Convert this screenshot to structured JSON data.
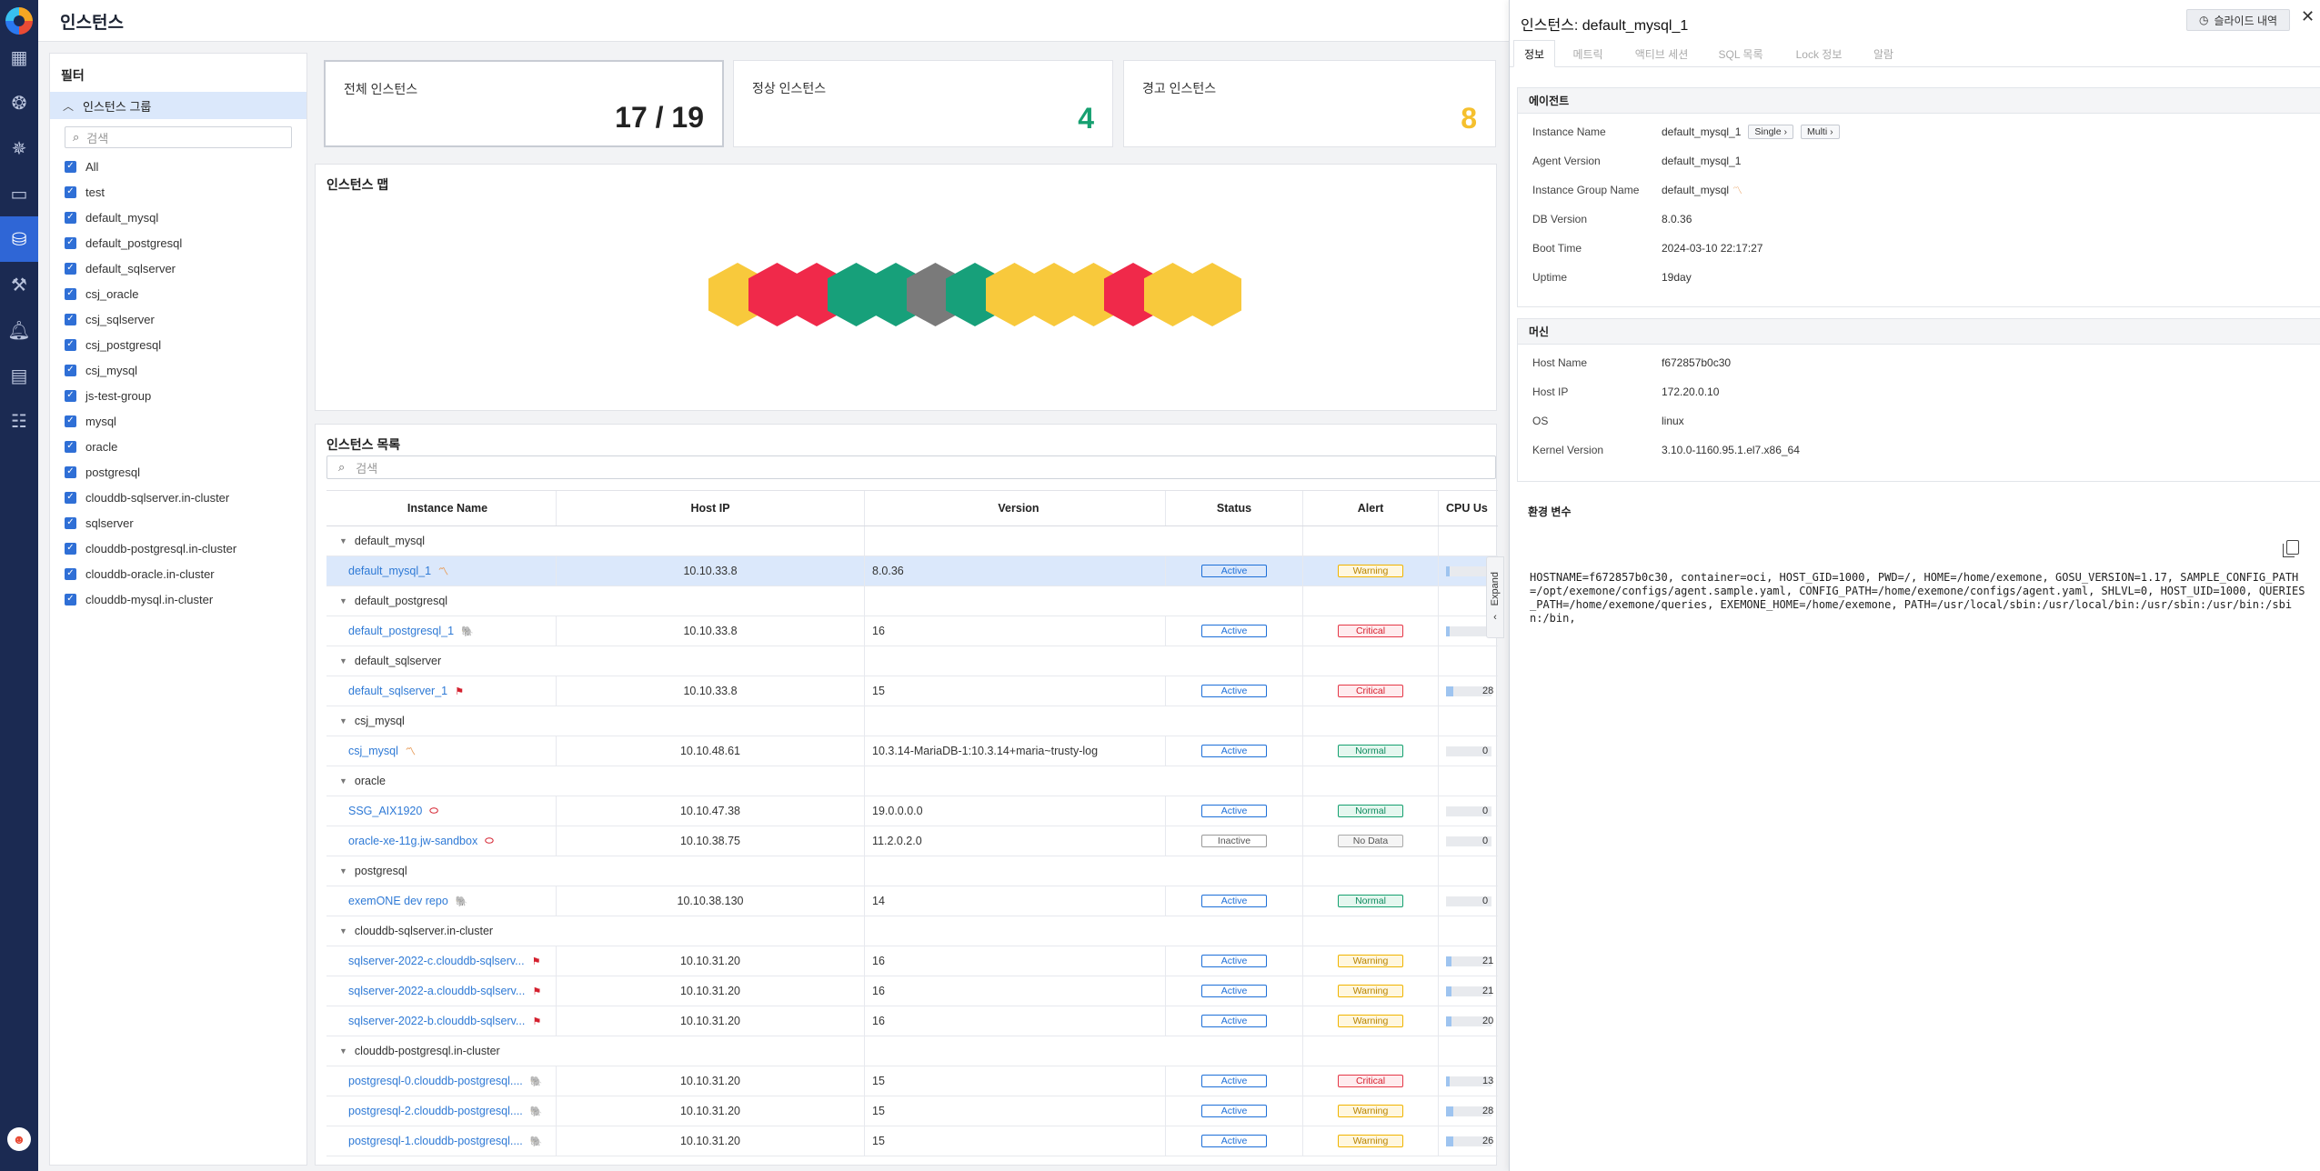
{
  "page_title": "인스턴스",
  "nav_icons": [
    "dashboard-icon",
    "cluster-icon",
    "kubernetes-icon",
    "monitor-icon",
    "database-icon",
    "tools-icon",
    "bell-icon",
    "report-icon",
    "clipboard-icon"
  ],
  "filter": {
    "title": "필터",
    "group_title": "인스턴스 그룹",
    "search_placeholder": "검색",
    "items": [
      "All",
      "test",
      "default_mysql",
      "default_postgresql",
      "default_sqlserver",
      "csj_oracle",
      "csj_sqlserver",
      "csj_postgresql",
      "csj_mysql",
      "js-test-group",
      "mysql",
      "oracle",
      "postgresql",
      "clouddb-sqlserver.in-cluster",
      "sqlserver",
      "clouddb-postgresql.in-cluster",
      "clouddb-oracle.in-cluster",
      "clouddb-mysql.in-cluster"
    ]
  },
  "cards": [
    {
      "label": "전체 인스턴스",
      "value": "17 / 19",
      "color": "#222222"
    },
    {
      "label": "정상 인스턴스",
      "value": "4",
      "color": "#16a070"
    },
    {
      "label": "경고 인스턴스",
      "value": "8",
      "color": "#f5c02e"
    }
  ],
  "map": {
    "title": "인스턴스 맵",
    "hex_colors": [
      "#f8c93c",
      "#f0294a",
      "#f0294a",
      "#17a07a",
      "#17a07a",
      "#7a7a7a",
      "#17a07a",
      "#f8c93c",
      "#f8c93c",
      "#f8c93c",
      "#f0294a",
      "#f8c93c",
      "#f8c93c"
    ]
  },
  "list": {
    "title": "인스턴스 목록",
    "search_placeholder": "검색",
    "columns": [
      "Instance Name",
      "Host IP",
      "Version",
      "Status",
      "Alert",
      "CPU Us"
    ],
    "rows": [
      {
        "type": "group",
        "name": "default_mysql"
      },
      {
        "type": "row",
        "name": "default_mysql_1",
        "icon": "〽",
        "icon_color": "#e8a060",
        "ip": "10.10.33.8",
        "version": "8.0.36",
        "status": "Active",
        "alert": "Warning",
        "cpu": "",
        "cpu_pct": 12,
        "selected": true
      },
      {
        "type": "group",
        "name": "default_postgresql"
      },
      {
        "type": "row",
        "name": "default_postgresql_1",
        "icon": "🐘",
        "icon_color": "#336791",
        "ip": "10.10.33.8",
        "version": "16",
        "status": "Active",
        "alert": "Critical",
        "cpu": "",
        "cpu_pct": 12
      },
      {
        "type": "group",
        "name": "default_sqlserver"
      },
      {
        "type": "row",
        "name": "default_sqlserver_1",
        "icon": "⚑",
        "icon_color": "#d4202e",
        "ip": "10.10.33.8",
        "version": "15",
        "status": "Active",
        "alert": "Critical",
        "cpu": "28",
        "cpu_pct": 28
      },
      {
        "type": "group",
        "name": "csj_mysql"
      },
      {
        "type": "row",
        "name": "csj_mysql",
        "icon": "〽",
        "icon_color": "#e8a060",
        "ip": "10.10.48.61",
        "version": "10.3.14-MariaDB-1:10.3.14+maria~trusty-log",
        "status": "Active",
        "alert": "Normal",
        "cpu": "0",
        "cpu_pct": 0
      },
      {
        "type": "group",
        "name": "oracle"
      },
      {
        "type": "row",
        "name": "SSG_AIX1920",
        "icon": "⬭",
        "icon_color": "#d4202e",
        "ip": "10.10.47.38",
        "version": "19.0.0.0.0",
        "status": "Active",
        "alert": "Normal",
        "cpu": "0",
        "cpu_pct": 0
      },
      {
        "type": "row",
        "name": "oracle-xe-11g.jw-sandbox",
        "icon": "⬭",
        "icon_color": "#d4202e",
        "ip": "10.10.38.75",
        "version": "11.2.0.2.0",
        "status": "Inactive",
        "alert": "No Data",
        "cpu": "0",
        "cpu_pct": 0
      },
      {
        "type": "group",
        "name": "postgresql"
      },
      {
        "type": "row",
        "name": "exemONE dev repo",
        "icon": "🐘",
        "icon_color": "#336791",
        "ip": "10.10.38.130",
        "version": "14",
        "status": "Active",
        "alert": "Normal",
        "cpu": "0",
        "cpu_pct": 0
      },
      {
        "type": "group",
        "name": "clouddb-sqlserver.in-cluster"
      },
      {
        "type": "row",
        "name": "sqlserver-2022-c.clouddb-sqlserv...",
        "icon": "⚑",
        "icon_color": "#d4202e",
        "ip": "10.10.31.20",
        "version": "16",
        "status": "Active",
        "alert": "Warning",
        "cpu": "21",
        "cpu_pct": 21
      },
      {
        "type": "row",
        "name": "sqlserver-2022-a.clouddb-sqlserv...",
        "icon": "⚑",
        "icon_color": "#d4202e",
        "ip": "10.10.31.20",
        "version": "16",
        "status": "Active",
        "alert": "Warning",
        "cpu": "21",
        "cpu_pct": 21
      },
      {
        "type": "row",
        "name": "sqlserver-2022-b.clouddb-sqlserv...",
        "icon": "⚑",
        "icon_color": "#d4202e",
        "ip": "10.10.31.20",
        "version": "16",
        "status": "Active",
        "alert": "Warning",
        "cpu": "20",
        "cpu_pct": 20
      },
      {
        "type": "group",
        "name": "clouddb-postgresql.in-cluster"
      },
      {
        "type": "row",
        "name": "postgresql-0.clouddb-postgresql....",
        "icon": "🐘",
        "icon_color": "#336791",
        "ip": "10.10.31.20",
        "version": "15",
        "status": "Active",
        "alert": "Critical",
        "cpu": "13",
        "cpu_pct": 13
      },
      {
        "type": "row",
        "name": "postgresql-2.clouddb-postgresql....",
        "icon": "🐘",
        "icon_color": "#336791",
        "ip": "10.10.31.20",
        "version": "15",
        "status": "Active",
        "alert": "Warning",
        "cpu": "28",
        "cpu_pct": 28
      },
      {
        "type": "row",
        "name": "postgresql-1.clouddb-postgresql....",
        "icon": "🐘",
        "icon_color": "#336791",
        "ip": "10.10.31.20",
        "version": "15",
        "status": "Active",
        "alert": "Warning",
        "cpu": "26",
        "cpu_pct": 26
      }
    ]
  },
  "expand_label": "Expand",
  "drawer": {
    "title": "인스턴스: default_mysql_1",
    "slide_button": "슬라이드 내역",
    "tabs": [
      "정보",
      "메트릭",
      "액티브 세션",
      "SQL 목록",
      "Lock 정보",
      "알람"
    ],
    "agent": {
      "title": "에이전트",
      "rows": [
        {
          "k": "Instance Name",
          "v": "default_mysql_1",
          "pills": [
            "Single ›",
            "Multi ›"
          ]
        },
        {
          "k": "Agent Version",
          "v": "default_mysql_1"
        },
        {
          "k": "Instance Group Name",
          "v": "default_mysql",
          "icon": "〽"
        },
        {
          "k": "DB Version",
          "v": "8.0.36"
        },
        {
          "k": "Boot Time",
          "v": "2024-03-10 22:17:27"
        },
        {
          "k": "Uptime",
          "v": "19day"
        }
      ]
    },
    "machine": {
      "title": "머신",
      "rows": [
        {
          "k": "Host Name",
          "v": "f672857b0c30"
        },
        {
          "k": "Host IP",
          "v": "172.20.0.10"
        },
        {
          "k": "OS",
          "v": "linux"
        },
        {
          "k": "Kernel Version",
          "v": "3.10.0-1160.95.1.el7.x86_64"
        }
      ]
    },
    "env": {
      "title": "환경 변수",
      "text": "HOSTNAME=f672857b0c30, container=oci, HOST_GID=1000, PWD=/, HOME=/home/exemone, GOSU_VERSION=1.17, SAMPLE_CONFIG_PATH=/opt/exemone/configs/agent.sample.yaml, CONFIG_PATH=/home/exemone/configs/agent.yaml, SHLVL=0, HOST_UID=1000, QUERIES_PATH=/home/exemone/queries, EXEMONE_HOME=/home/exemone, PATH=/usr/local/sbin:/usr/local/bin:/usr/sbin:/usr/bin:/sbin:/bin,"
    }
  }
}
